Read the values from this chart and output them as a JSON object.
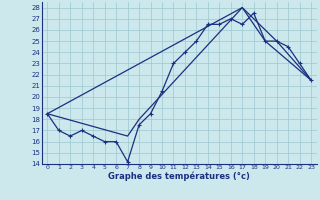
{
  "title": "Graphe des températures (°c)",
  "bg_color": "#cce8ec",
  "line_color": "#1a3080",
  "grid_color": "#9ec8d0",
  "xlim": [
    -0.5,
    23.5
  ],
  "ylim": [
    14,
    28.5
  ],
  "yticks": [
    14,
    15,
    16,
    17,
    18,
    19,
    20,
    21,
    22,
    23,
    24,
    25,
    26,
    27,
    28
  ],
  "xticks": [
    0,
    1,
    2,
    3,
    4,
    5,
    6,
    7,
    8,
    9,
    10,
    11,
    12,
    13,
    14,
    15,
    16,
    17,
    18,
    19,
    20,
    21,
    22,
    23
  ],
  "series1_x": [
    0,
    1,
    2,
    3,
    4,
    5,
    6,
    7,
    8,
    9,
    10,
    11,
    12,
    13,
    14,
    15,
    16,
    17,
    18,
    19,
    20,
    21,
    22,
    23
  ],
  "series1_y": [
    18.5,
    17.0,
    16.5,
    17.0,
    16.5,
    16.0,
    16.0,
    14.2,
    17.5,
    18.5,
    20.5,
    23.0,
    24.0,
    25.0,
    26.5,
    26.5,
    27.0,
    26.5,
    27.5,
    25.0,
    25.0,
    24.5,
    23.0,
    21.5
  ],
  "series2_x": [
    0,
    17,
    19,
    23
  ],
  "series2_y": [
    18.5,
    28.0,
    25.0,
    21.5
  ],
  "series3_x": [
    0,
    7,
    8,
    17,
    20,
    23
  ],
  "series3_y": [
    18.5,
    16.5,
    18.0,
    28.0,
    25.0,
    21.5
  ]
}
